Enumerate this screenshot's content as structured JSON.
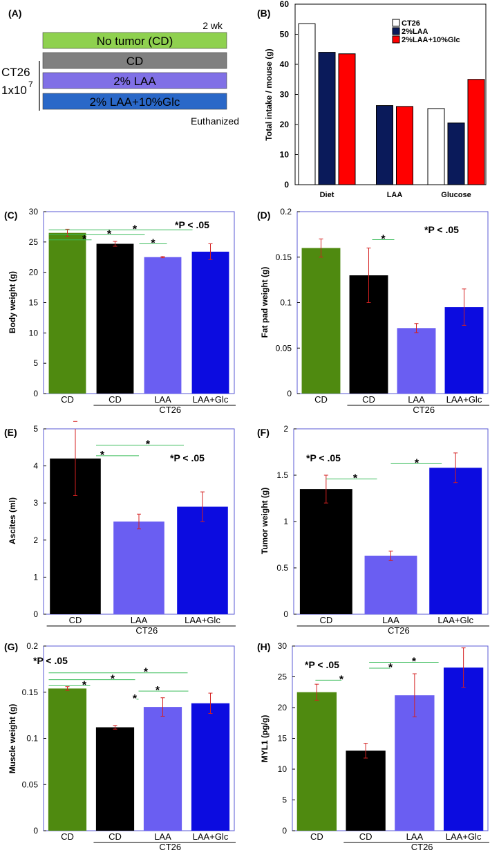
{
  "colors": {
    "green": "#4f8a10",
    "black": "#000000",
    "light_purple": "#6a5ef2",
    "blue": "#0c0ce0",
    "star_line": "#3cbd5c",
    "error_bar": "#d42020",
    "axis_box": "#5a5ad6",
    "navy": "#0a1a5a",
    "red": "#ff0000",
    "schematic_green": "#8fd14f",
    "schematic_gray": "#808080",
    "schematic_purple": "#8070e6",
    "schematic_blue": "#2a68c8"
  },
  "panel_a": {
    "label": "(A)",
    "duration": "2 wk",
    "rows": [
      "No tumor (CD)",
      "CD",
      "2% LAA",
      "2% LAA+10%Glc"
    ],
    "group_label_line1": "CT26",
    "group_label_line2": "1x10",
    "group_label_exp": "7",
    "end_label": "Euthanized"
  },
  "chart_data": [
    {
      "panel": "B",
      "label": "(B)",
      "type": "bar",
      "ylabel": "Total intake / mouse (g)",
      "ylim": [
        0,
        60
      ],
      "yticks": [
        0,
        10,
        20,
        30,
        40,
        50,
        60
      ],
      "categories": [
        "Diet",
        "LAA",
        "Glucose"
      ],
      "series": [
        {
          "name": "CT26",
          "values": [
            53.5,
            null,
            25.3
          ]
        },
        {
          "name": "2%LAA",
          "values": [
            44,
            26.3,
            20.5
          ]
        },
        {
          "name": "2%LAA+10%Glc",
          "values": [
            43.5,
            26,
            35
          ]
        }
      ]
    },
    {
      "panel": "C",
      "label": "(C)",
      "type": "bar",
      "ylabel": "Body weight (g)",
      "ylim": [
        0,
        30
      ],
      "yticks": [
        "0",
        "5",
        "10",
        "15",
        "20",
        "25",
        "30"
      ],
      "categories": [
        "CD",
        "CD",
        "LAA",
        "LAA+Glc"
      ],
      "group_label": "CT26",
      "values": [
        26.5,
        24.7,
        22.5,
        23.4
      ],
      "errors": [
        0.6,
        0.4,
        0.1,
        1.3
      ],
      "significance": "*P < .05"
    },
    {
      "panel": "D",
      "label": "(D)",
      "type": "bar",
      "ylabel": "Fat pad weight (g)",
      "ylim": [
        0,
        0.2
      ],
      "yticks": [
        "0",
        "0.05",
        "0.1",
        "0.15",
        "0.2"
      ],
      "categories": [
        "CD",
        "CD",
        "LAA",
        "LAA+Glc"
      ],
      "group_label": "CT26",
      "values": [
        0.16,
        0.13,
        0.072,
        0.095
      ],
      "errors": [
        0.01,
        0.03,
        0.005,
        0.02
      ],
      "significance": "*P < .05"
    },
    {
      "panel": "E",
      "label": "(E)",
      "type": "bar",
      "ylabel": "Ascites (ml)",
      "ylim": [
        0,
        5
      ],
      "yticks": [
        "0",
        "1",
        "2",
        "3",
        "4",
        "5"
      ],
      "categories": [
        "CD",
        "LAA",
        "LAA+Glc"
      ],
      "group_label": "CT26",
      "values": [
        4.2,
        2.5,
        2.9
      ],
      "errors": [
        1.0,
        0.2,
        0.4
      ],
      "significance": "*P < .05"
    },
    {
      "panel": "F",
      "label": "(F)",
      "type": "bar",
      "ylabel": "Tumor weight (g)",
      "ylim": [
        0,
        2
      ],
      "yticks": [
        "0",
        "0.5",
        "1",
        "1.5",
        "2"
      ],
      "categories": [
        "CD",
        "LAA",
        "LAA+Glc"
      ],
      "group_label": "CT26",
      "values": [
        1.35,
        0.63,
        1.58
      ],
      "errors": [
        0.15,
        0.05,
        0.16
      ],
      "significance": "*P < .05"
    },
    {
      "panel": "G",
      "label": "(G)",
      "type": "bar",
      "ylabel": "Muscle weight (g)",
      "ylim": [
        0,
        0.2
      ],
      "yticks": [
        "0",
        "0.05",
        "0.1",
        "0.15",
        "0.2"
      ],
      "categories": [
        "CD",
        "CD",
        "LAA",
        "LAA+Glc"
      ],
      "group_label": "CT26",
      "values": [
        0.154,
        0.112,
        0.134,
        0.138
      ],
      "errors": [
        0.002,
        0.002,
        0.01,
        0.011
      ],
      "significance": "*P < .05"
    },
    {
      "panel": "H",
      "label": "(H)",
      "type": "bar",
      "ylabel": "MYL1 (pg/g)",
      "ylim": [
        0,
        30
      ],
      "yticks": [
        "0",
        "5",
        "10",
        "15",
        "20",
        "25",
        "30"
      ],
      "categories": [
        "CD",
        "CD",
        "LAA",
        "LAA+Glc"
      ],
      "group_label": "CT26",
      "values": [
        22.5,
        13,
        22,
        26.5
      ],
      "errors": [
        1.3,
        1.2,
        3.5,
        3.2
      ],
      "significance": "*P < .05"
    }
  ]
}
